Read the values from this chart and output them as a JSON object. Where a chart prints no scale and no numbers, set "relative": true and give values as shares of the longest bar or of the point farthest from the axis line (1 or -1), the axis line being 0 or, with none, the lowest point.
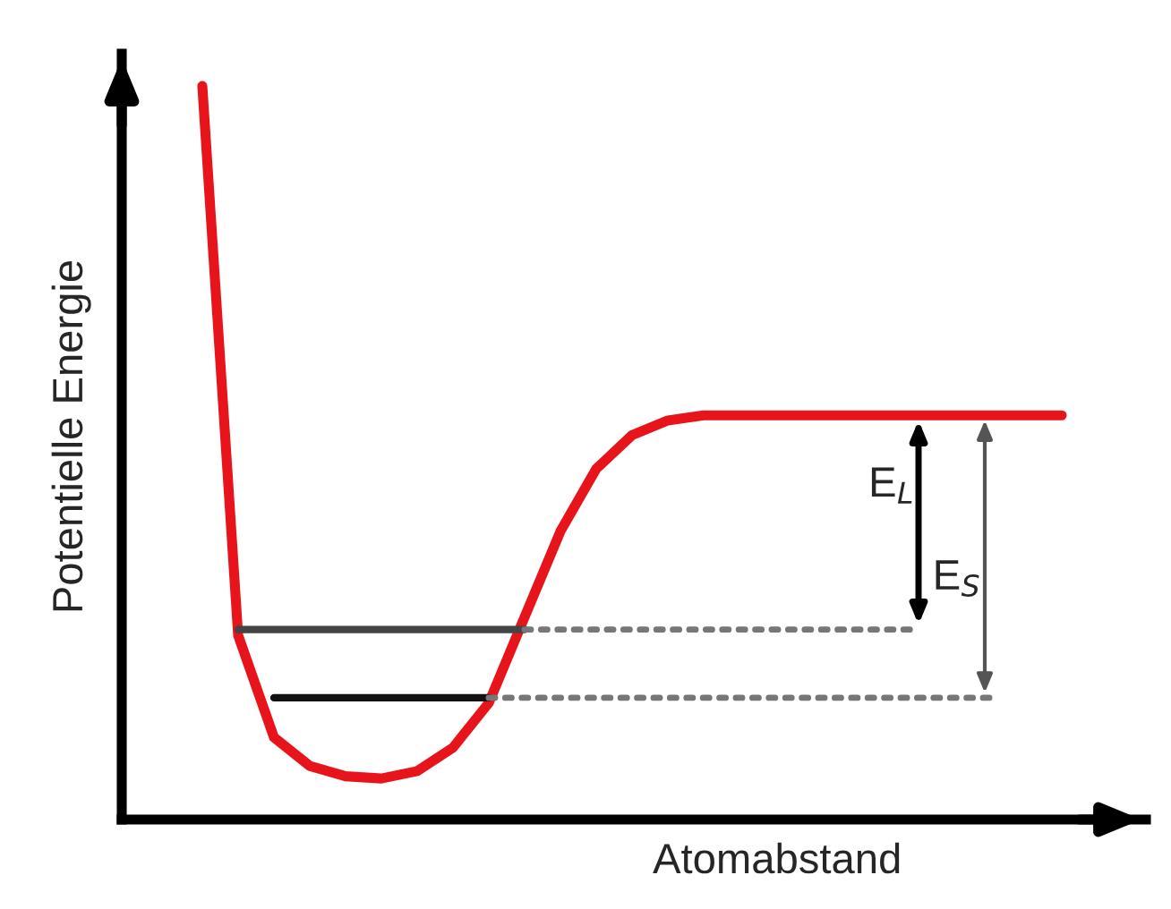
{
  "chart_data": {
    "type": "line",
    "relative": true,
    "xlabel": "Atomabstand",
    "ylabel": "Potentielle Energie",
    "categories": [
      null,
      null,
      null,
      null,
      null,
      null,
      null,
      null,
      null,
      null,
      null,
      null,
      null,
      null,
      null,
      null,
      null,
      null,
      null,
      null,
      null,
      null,
      null,
      null,
      null
    ],
    "series": [
      {
        "color": "#e8141b",
        "line_style": "solid",
        "values": [
          1.0,
          0.251,
          0.112,
          0.073,
          0.059,
          0.056,
          0.066,
          0.098,
          0.159,
          0.276,
          0.393,
          0.478,
          0.524,
          0.544,
          0.551,
          0.551,
          0.551,
          0.551,
          0.551,
          0.551,
          0.551,
          0.551,
          0.551,
          0.551,
          0.551
        ]
      },
      {
        "color": "#444444",
        "line_style": "solid",
        "values": [
          null,
          0.259,
          0.259,
          0.259,
          0.259,
          0.259,
          0.259,
          0.259,
          0.259,
          0.259,
          null,
          null,
          null,
          null,
          null,
          null,
          null,
          null,
          null,
          null,
          null,
          null,
          null,
          null,
          null
        ]
      },
      {
        "color": "#111111",
        "line_style": "solid",
        "values": [
          null,
          null,
          0.166,
          0.166,
          0.166,
          0.166,
          0.166,
          0.166,
          0.166,
          null,
          null,
          null,
          null,
          null,
          null,
          null,
          null,
          null,
          null,
          null,
          null,
          null,
          null,
          null,
          null
        ]
      },
      {
        "color": "#777777",
        "line_style": "dotted",
        "values": [
          null,
          null,
          null,
          null,
          null,
          null,
          null,
          null,
          null,
          0.259,
          0.259,
          0.259,
          0.259,
          0.259,
          0.259,
          0.259,
          0.259,
          0.259,
          0.259,
          0.259,
          0.259,
          null,
          null,
          null,
          null
        ]
      },
      {
        "color": "#777777",
        "line_style": "dotted",
        "values": [
          null,
          null,
          null,
          null,
          null,
          null,
          null,
          null,
          0.166,
          0.166,
          0.166,
          0.166,
          0.166,
          0.166,
          0.166,
          0.166,
          0.166,
          0.166,
          0.166,
          0.166,
          0.166,
          0.166,
          0.166,
          null,
          null
        ]
      }
    ],
    "annotations": [
      "E$_{L}$",
      "E$_{S}$"
    ],
    "grid": false
  }
}
